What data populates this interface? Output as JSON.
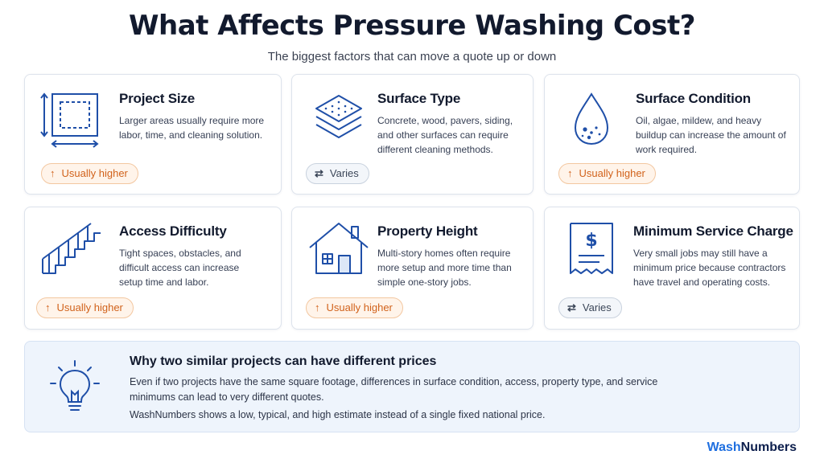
{
  "header": {
    "title": "What Affects Pressure Washing Cost?",
    "subtitle": "The biggest factors that can move a quote up or down"
  },
  "cards": [
    {
      "title": "Project Size",
      "description": "Larger areas usually require more labor, time, and cleaning solution.",
      "badge": "Usually higher",
      "badge_type": "up",
      "icon": "dimensions-square-icon"
    },
    {
      "title": "Surface Type",
      "description": "Concrete, wood, pavers, siding, and other surfaces can require different cleaning methods.",
      "badge": "Varies",
      "badge_type": "varies",
      "icon": "stacked-layers-icon"
    },
    {
      "title": "Surface Condition",
      "description": "Oil, algae, mildew, and heavy buildup can increase the amount of work required.",
      "badge": "Usually higher",
      "badge_type": "up",
      "icon": "water-drop-icon"
    },
    {
      "title": "Access Difficulty",
      "description": "Tight spaces, obstacles, and difficult access can increase setup time and labor.",
      "badge": "Usually higher",
      "badge_type": "up",
      "icon": "stairs-icon"
    },
    {
      "title": "Property Height",
      "description": "Multi-story homes often require more setup and more time than simple one-story jobs.",
      "badge": "Usually higher",
      "badge_type": "up",
      "icon": "house-icon"
    },
    {
      "title": "Minimum Service Charge",
      "description": "Very small jobs may still have a minimum price because contractors have travel and operating costs.",
      "badge": "Varies",
      "badge_type": "varies",
      "icon": "receipt-dollar-icon"
    }
  ],
  "info": {
    "title": "Why two similar projects can have different prices",
    "body": "Even if two projects have the same square footage, differences in surface condition, access, property type, and service minimums can lead to very different quotes.",
    "body2": "WashNumbers shows a low, typical, and high estimate instead of a single fixed national price.",
    "icon": "lightbulb-icon"
  },
  "brand": {
    "part1": "Wash",
    "part2": "Numbers"
  },
  "colors": {
    "accent_blue": "#1f4fa8",
    "up_orange": "#d1621b",
    "varies_gray": "#3b4658"
  },
  "badge_glyphs": {
    "up": "↑",
    "varies": "⇄"
  }
}
